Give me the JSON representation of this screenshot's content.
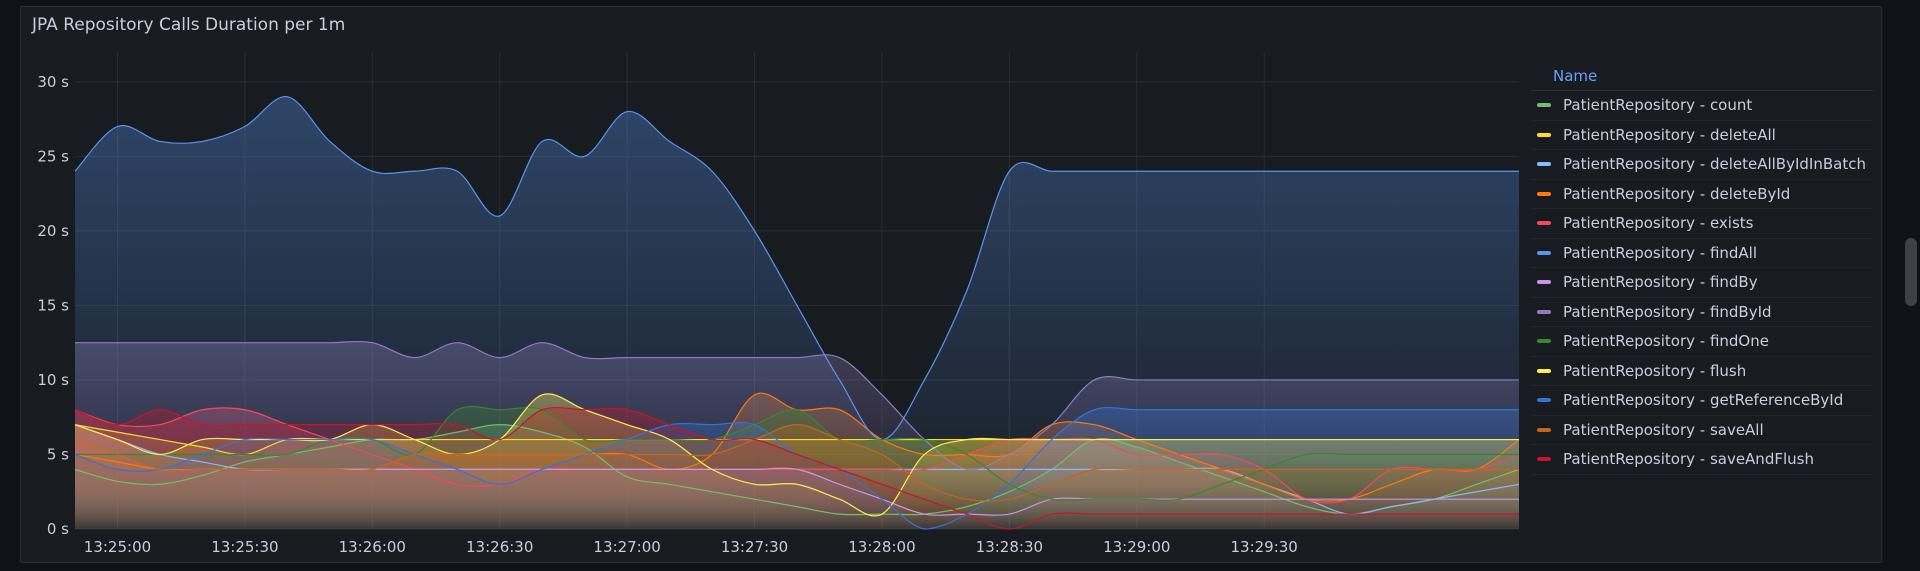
{
  "panel": {
    "title": "JPA Repository Calls Duration per 1m"
  },
  "legend": {
    "header": "Name"
  },
  "chart_data": {
    "type": "line",
    "title": "JPA Repository Calls Duration per 1m",
    "x_ticks": [
      "13:25:00",
      "13:25:30",
      "13:26:00",
      "13:26:30",
      "13:27:00",
      "13:27:30",
      "13:28:00",
      "13:28:30",
      "13:29:00",
      "13:29:30"
    ],
    "y_ticks": [
      "0 s",
      "5 s",
      "10 s",
      "15 s",
      "20 s",
      "25 s",
      "30 s"
    ],
    "ylim": [
      0,
      32
    ],
    "x_start": "13:24:50",
    "x_end": "13:29:40",
    "x_step_seconds": 10,
    "fill": true,
    "grid": true,
    "legend_position": "right",
    "series": [
      {
        "name": "PatientRepository - count",
        "color": "#73bf69",
        "values": [
          4,
          3.2,
          3,
          3.6,
          4.5,
          5,
          5.5,
          6,
          6,
          6.5,
          7,
          6.5,
          5.5,
          3.5,
          3,
          2.5,
          2,
          1.5,
          1,
          1,
          1,
          1.5,
          2.5,
          4,
          6,
          5.5,
          4.5,
          3.5,
          2.5,
          1.5,
          1,
          1.5,
          2,
          3,
          4
        ]
      },
      {
        "name": "PatientRepository - deleteAll",
        "color": "#fade2a",
        "values": [
          7,
          6.5,
          6,
          5.5,
          5,
          6,
          6,
          6,
          6,
          6,
          6,
          6,
          6,
          6,
          6,
          6,
          6,
          6,
          6,
          6,
          6,
          6,
          6,
          6,
          6,
          6,
          6,
          6,
          6,
          6,
          6,
          6,
          6,
          6,
          6
        ]
      },
      {
        "name": "PatientRepository - deleteAllByIdInBatch",
        "color": "#8ab8ff",
        "values": [
          7,
          6,
          5,
          4.5,
          4,
          4,
          4,
          4,
          4,
          4,
          4,
          4,
          4,
          4,
          4,
          4,
          4,
          4,
          4,
          4,
          4,
          4,
          4,
          4,
          4,
          4,
          4,
          4,
          3,
          2,
          1,
          1.5,
          2,
          2.5,
          3
        ]
      },
      {
        "name": "PatientRepository - deleteById",
        "color": "#ff780a",
        "values": [
          5,
          4.5,
          4,
          4,
          4,
          4,
          4,
          4,
          5,
          5,
          5,
          5,
          5,
          5,
          4,
          5,
          9,
          8,
          8,
          6,
          5,
          5,
          5,
          7,
          7,
          6,
          5,
          4,
          3,
          2,
          2,
          3,
          4,
          4,
          6
        ]
      },
      {
        "name": "PatientRepository - exists",
        "color": "#f2495c",
        "values": [
          8,
          7,
          7,
          8,
          8,
          7,
          6,
          5,
          4,
          3,
          3,
          4,
          4,
          4,
          4,
          4,
          4,
          4,
          4,
          4,
          4,
          5,
          6,
          6,
          6,
          5,
          5,
          5,
          4,
          2,
          2,
          4,
          4,
          4,
          5
        ]
      },
      {
        "name": "PatientRepository - findAll",
        "color": "#5794f2",
        "values": [
          24,
          27,
          26,
          26,
          27,
          29,
          26,
          24,
          24,
          24,
          21,
          26,
          25,
          28,
          26,
          24,
          20,
          15,
          10,
          6,
          10,
          16,
          24,
          24,
          24,
          24,
          24,
          24,
          24,
          24,
          24,
          24,
          24,
          24,
          24
        ]
      },
      {
        "name": "PatientRepository - findBy",
        "color": "#ca95e5",
        "values": [
          6,
          5,
          4,
          4,
          4,
          4,
          4,
          4,
          4,
          4,
          4,
          4,
          4,
          4,
          4,
          4,
          4,
          4,
          3,
          2,
          1,
          1,
          1,
          2,
          2,
          2,
          2,
          2,
          2,
          2,
          2,
          2,
          2,
          2,
          2
        ]
      },
      {
        "name": "PatientRepository - findById",
        "color": "#8f7ebc",
        "values": [
          12.5,
          12.5,
          12.5,
          12.5,
          12.5,
          12.5,
          12.5,
          12.5,
          11.5,
          12.5,
          11.5,
          12.5,
          11.5,
          11.5,
          11.5,
          11.5,
          11.5,
          11.5,
          11.5,
          9,
          6,
          4,
          5,
          7,
          10,
          10,
          10,
          10,
          10,
          10,
          10,
          10,
          10,
          10,
          10
        ]
      },
      {
        "name": "PatientRepository - findOne",
        "color": "#37872d",
        "values": [
          5,
          5,
          5,
          5,
          5,
          5,
          6,
          6,
          5,
          8,
          8,
          8,
          6,
          6,
          6,
          6,
          7,
          8,
          6,
          6,
          6,
          5,
          3,
          2,
          2,
          2,
          2,
          3,
          4,
          5,
          5,
          5,
          5,
          5,
          5
        ]
      },
      {
        "name": "PatientRepository - flush",
        "color": "#ffee52",
        "values": [
          7,
          6,
          5,
          6,
          6,
          6,
          6,
          7,
          6,
          5,
          6,
          9,
          8,
          7,
          6,
          4,
          3,
          3,
          2,
          1,
          5,
          6,
          6,
          6,
          6,
          6,
          6,
          6,
          6,
          6,
          6,
          6,
          6,
          6,
          6
        ]
      },
      {
        "name": "PatientRepository - getReferenceById",
        "color": "#3274d9",
        "values": [
          5,
          4,
          4,
          5,
          6,
          6,
          6,
          6,
          5,
          4,
          3,
          4,
          5,
          6,
          7,
          7,
          7,
          5,
          4,
          2,
          0,
          1,
          3,
          6,
          8,
          8,
          8,
          8,
          8,
          8,
          8,
          8,
          8,
          8,
          8
        ]
      },
      {
        "name": "PatientRepository - saveAll",
        "color": "#c4661b",
        "values": [
          6,
          5,
          4,
          4,
          4,
          4,
          4,
          4,
          5,
          5,
          5,
          5,
          5,
          5,
          5,
          5,
          6,
          7,
          6,
          5,
          3,
          2,
          2,
          3,
          4,
          4,
          4,
          4,
          4,
          4,
          4,
          4,
          4,
          4,
          4
        ]
      },
      {
        "name": "PatientRepository - saveAndFlush",
        "color": "#c4162a",
        "values": [
          8,
          7,
          8,
          7,
          7,
          7,
          7,
          7,
          7,
          7,
          6,
          8,
          8,
          8,
          7,
          6,
          6,
          5,
          4,
          3,
          2,
          1,
          0,
          1,
          1,
          1,
          1,
          1,
          1,
          1,
          1,
          1,
          1,
          1,
          1
        ]
      }
    ]
  }
}
